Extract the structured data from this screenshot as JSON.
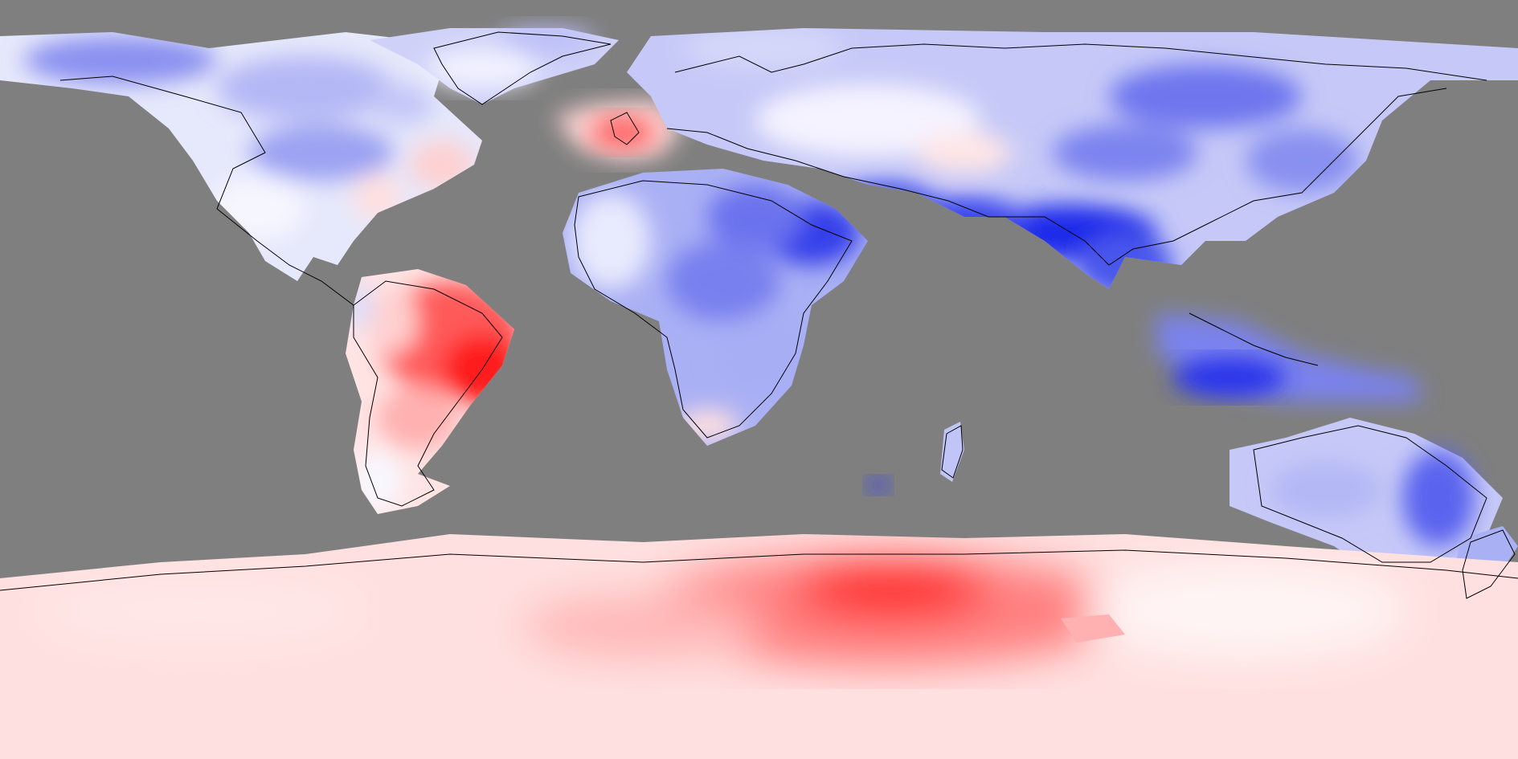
{
  "map": {
    "kind": "global-anomaly-map",
    "projection": "equirectangular",
    "colors": {
      "no_data": "#7f7f7f",
      "strong_negative": "#0010e8",
      "negative": "#5a64ee",
      "weak_negative": "#b8bcf6",
      "near_zero": "#f4f4ff",
      "weak_positive": "#ffd6d6",
      "positive": "#ff8a8a",
      "strong_positive": "#ff1a1a",
      "coastline": "#000000"
    },
    "regions": [
      {
        "name": "north-america",
        "tone": "weak_negative"
      },
      {
        "name": "greenland",
        "tone": "weak_negative"
      },
      {
        "name": "british-isles",
        "tone": "positive"
      },
      {
        "name": "europe",
        "tone": "weak_negative"
      },
      {
        "name": "north-asia",
        "tone": "negative"
      },
      {
        "name": "south-asia",
        "tone": "strong_negative"
      },
      {
        "name": "africa",
        "tone": "negative"
      },
      {
        "name": "maritime-continent",
        "tone": "negative"
      },
      {
        "name": "australia",
        "tone": "weak_negative"
      },
      {
        "name": "south-america",
        "tone": "strong_positive"
      },
      {
        "name": "antarctica",
        "tone": "positive"
      }
    ]
  }
}
